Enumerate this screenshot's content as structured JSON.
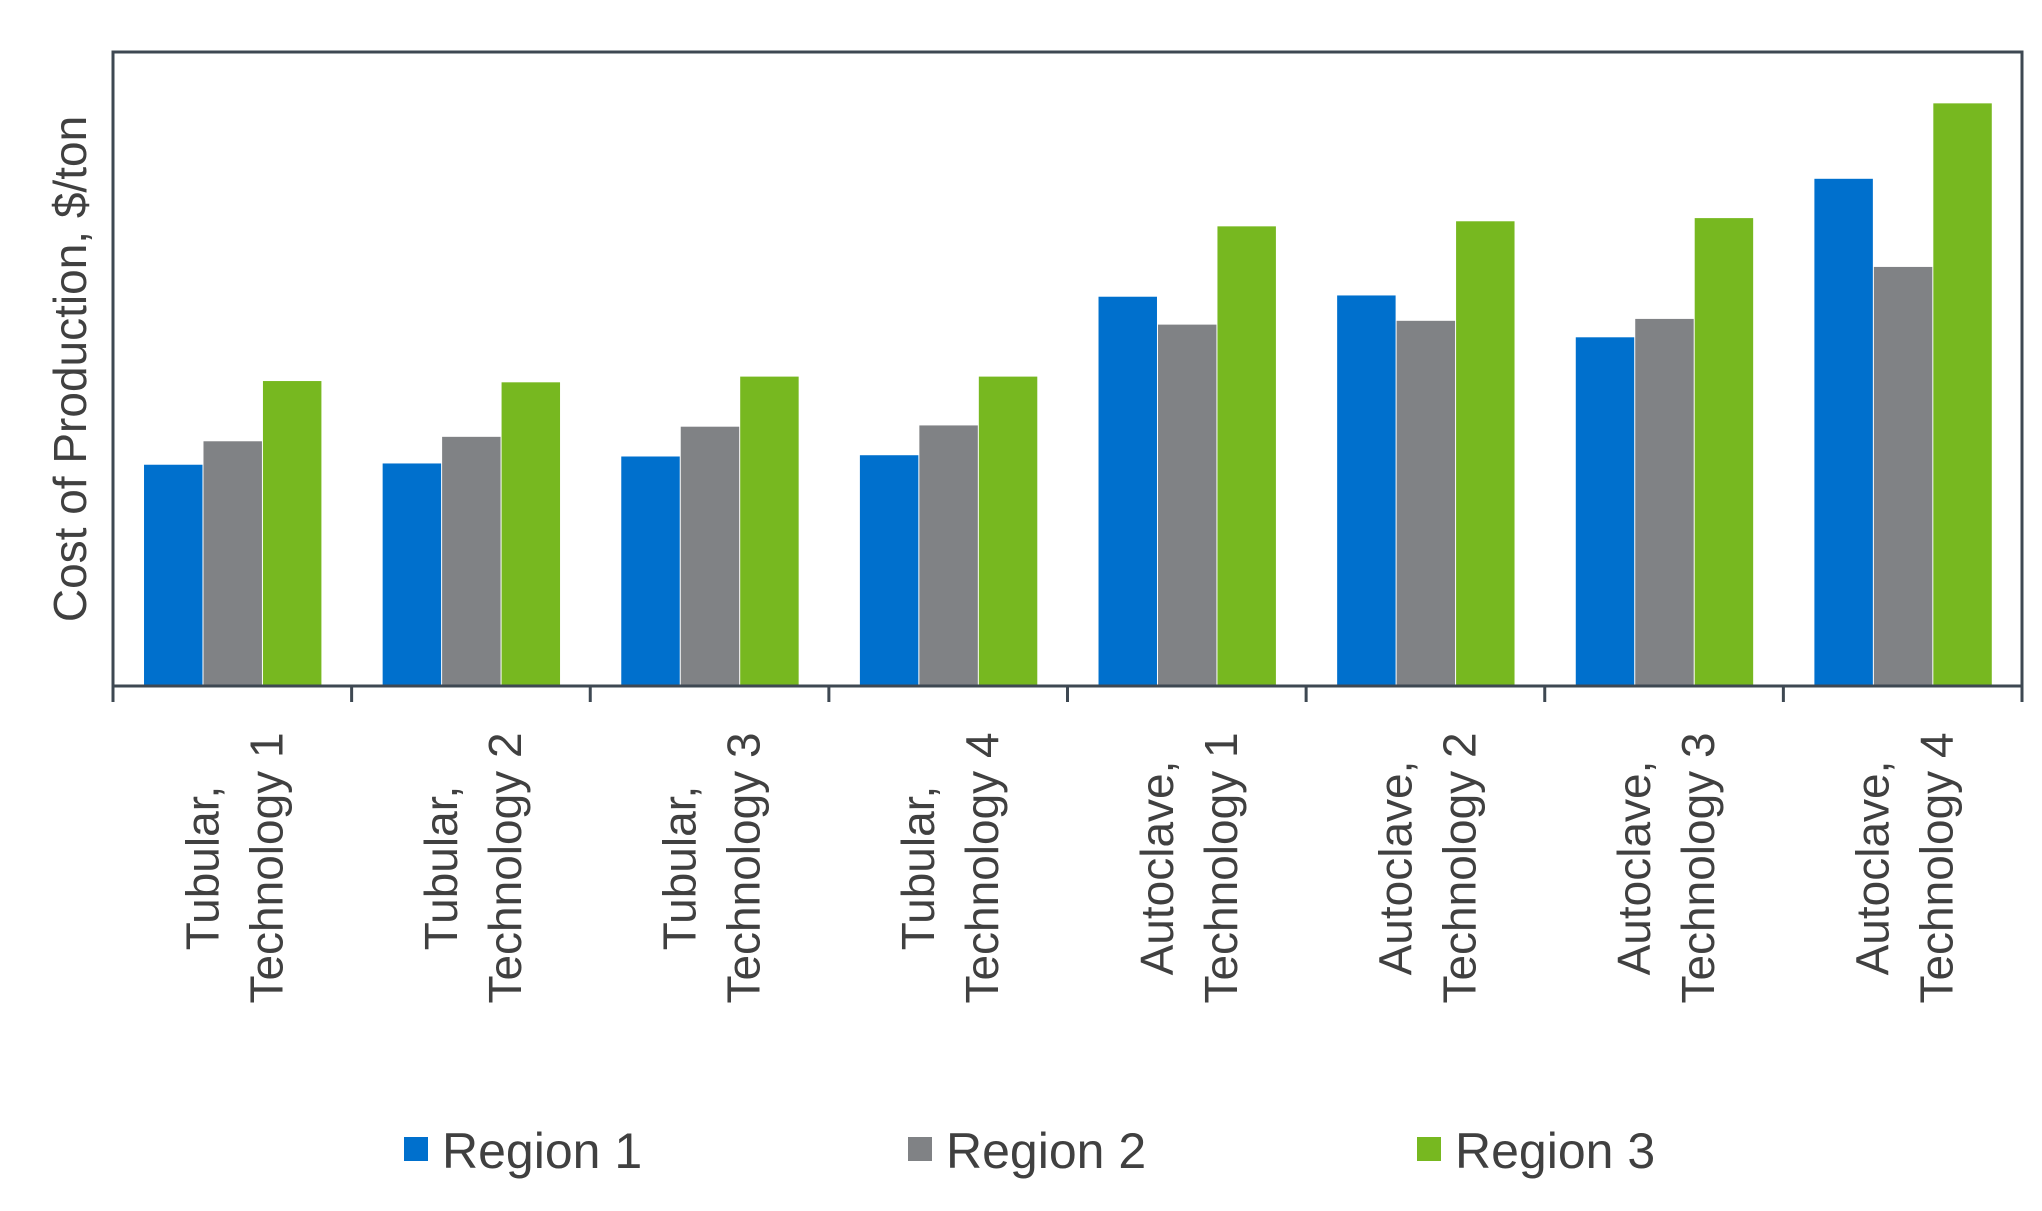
{
  "chart_data": {
    "type": "bar",
    "title": "",
    "xlabel": "",
    "ylabel": "Cost of Production, $/ton",
    "y_units_note": "relative scale (no tick labels shown), percent of axis height",
    "ylim": [
      0,
      100
    ],
    "grid": false,
    "legend_placement": "bottom",
    "categories": [
      [
        "Tubular,",
        "Technology 1"
      ],
      [
        "Tubular,",
        "Technology 2"
      ],
      [
        "Tubular,",
        "Technology 3"
      ],
      [
        "Tubular,",
        "Technology 4"
      ],
      [
        "Autoclave,",
        "Technology 1"
      ],
      [
        "Autoclave,",
        "Technology 2"
      ],
      [
        "Autoclave,",
        "Technology 3"
      ],
      [
        "Autoclave,",
        "Technology 4"
      ]
    ],
    "series": [
      {
        "name": "Region 1",
        "color": "#0070CD",
        "values": [
          34.9,
          35.1,
          36.2,
          36.4,
          61.4,
          61.6,
          55.0,
          80.0
        ]
      },
      {
        "name": "Region 2",
        "color": "#808285",
        "values": [
          38.6,
          39.3,
          40.9,
          41.1,
          57.0,
          57.6,
          57.9,
          66.1
        ]
      },
      {
        "name": "Region 3",
        "color": "#77B820",
        "values": [
          48.1,
          47.9,
          48.8,
          48.8,
          72.5,
          73.3,
          73.8,
          91.9
        ]
      }
    ],
    "axis_color": "#3E4852"
  }
}
